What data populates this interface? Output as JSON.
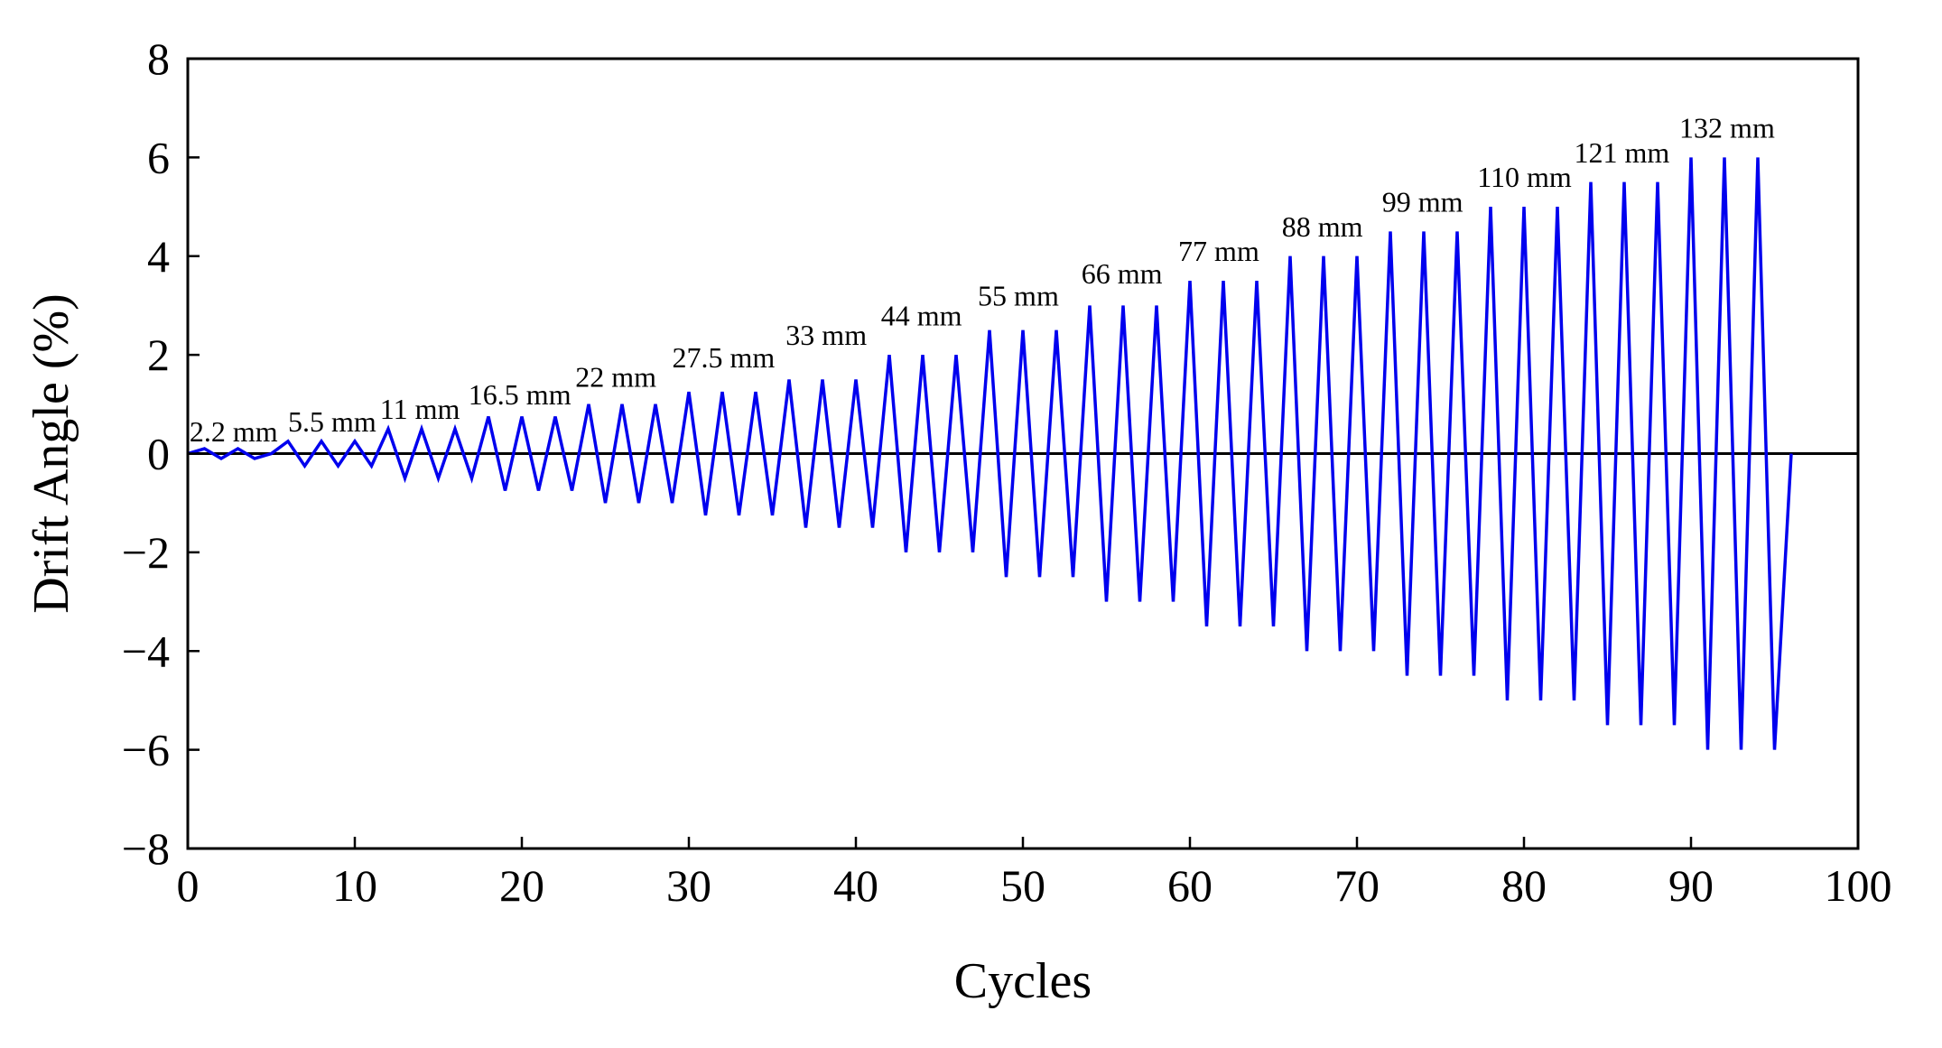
{
  "chart_data": {
    "type": "line",
    "title": "",
    "xlabel": "Cycles",
    "ylabel": "Drift Angle (%)",
    "xlim": [
      0,
      100
    ],
    "ylim": [
      -8,
      8
    ],
    "xticks": [
      0,
      10,
      20,
      30,
      40,
      50,
      60,
      70,
      80,
      90,
      100
    ],
    "yticks": [
      -8,
      -6,
      -4,
      -2,
      0,
      2,
      4,
      6,
      8
    ],
    "ytick_labels": [
      "−8",
      "−6",
      "−4",
      "−2",
      "0",
      "2",
      "4",
      "6",
      "8"
    ],
    "grid": false,
    "zero_line": true,
    "series": [
      {
        "color": "#0000ee",
        "x": [
          0,
          1,
          2,
          3,
          4,
          5,
          6,
          7,
          8,
          9,
          10,
          11,
          12,
          13,
          14,
          15,
          16,
          17,
          18,
          19,
          20,
          21,
          22,
          23,
          24,
          25,
          26,
          27,
          28,
          29,
          30,
          31,
          32,
          33,
          34,
          35,
          36,
          37,
          38,
          39,
          40,
          41,
          42,
          43,
          44,
          45,
          46,
          47,
          48,
          49,
          50,
          51,
          52,
          53,
          54,
          55,
          56,
          57,
          58,
          59,
          60,
          61,
          62,
          63,
          64,
          65,
          66,
          67,
          68,
          69,
          70,
          71,
          72,
          73,
          74,
          75,
          76,
          77,
          78,
          79,
          80,
          81,
          82,
          83,
          84,
          85,
          86,
          87,
          88,
          89,
          90,
          91,
          92,
          93,
          94,
          95,
          96
        ],
        "y": [
          0,
          0.1,
          -0.1,
          0.1,
          -0.1,
          0,
          0.25,
          -0.25,
          0.25,
          -0.25,
          0.25,
          -0.25,
          0.5,
          -0.5,
          0.5,
          -0.5,
          0.5,
          -0.5,
          0.75,
          -0.75,
          0.75,
          -0.75,
          0.75,
          -0.75,
          1,
          -1,
          1,
          -1,
          1,
          -1,
          1.25,
          -1.25,
          1.25,
          -1.25,
          1.25,
          -1.25,
          1.5,
          -1.5,
          1.5,
          -1.5,
          1.5,
          -1.5,
          2,
          -2,
          2,
          -2,
          2,
          -2,
          2.5,
          -2.5,
          2.5,
          -2.5,
          2.5,
          -2.5,
          3,
          -3,
          3,
          -3,
          3,
          -3,
          3.5,
          -3.5,
          3.5,
          -3.5,
          3.5,
          -3.5,
          4,
          -4,
          4,
          -4,
          4,
          -4,
          4.5,
          -4.5,
          4.5,
          -4.5,
          4.5,
          -4.5,
          5,
          -5,
          5,
          -5,
          5,
          -5,
          5.5,
          -5.5,
          5.5,
          -5.5,
          5.5,
          -5.5,
          6,
          -6,
          6,
          -6,
          6,
          -6,
          0
        ]
      }
    ],
    "annotations": [
      {
        "text": "2.2 mm",
        "x": 0.1,
        "y": 0.25
      },
      {
        "text": "5.5 mm",
        "x": 6.0,
        "y": 0.45
      },
      {
        "text": "11 mm",
        "x": 11.5,
        "y": 0.7
      },
      {
        "text": "16.5 mm",
        "x": 16.8,
        "y": 1.0
      },
      {
        "text": "22 mm",
        "x": 23.2,
        "y": 1.35
      },
      {
        "text": "27.5 mm",
        "x": 29.0,
        "y": 1.75
      },
      {
        "text": "33 mm",
        "x": 35.8,
        "y": 2.2
      },
      {
        "text": "44 mm",
        "x": 41.5,
        "y": 2.6
      },
      {
        "text": "55 mm",
        "x": 47.3,
        "y": 3.0
      },
      {
        "text": "66 mm",
        "x": 53.5,
        "y": 3.45
      },
      {
        "text": "77 mm",
        "x": 59.3,
        "y": 3.9
      },
      {
        "text": "88 mm",
        "x": 65.5,
        "y": 4.4
      },
      {
        "text": "99 mm",
        "x": 71.5,
        "y": 4.9
      },
      {
        "text": "110 mm",
        "x": 77.2,
        "y": 5.4
      },
      {
        "text": "121 mm",
        "x": 83.0,
        "y": 5.9
      },
      {
        "text": "132 mm",
        "x": 89.3,
        "y": 6.4
      }
    ]
  }
}
